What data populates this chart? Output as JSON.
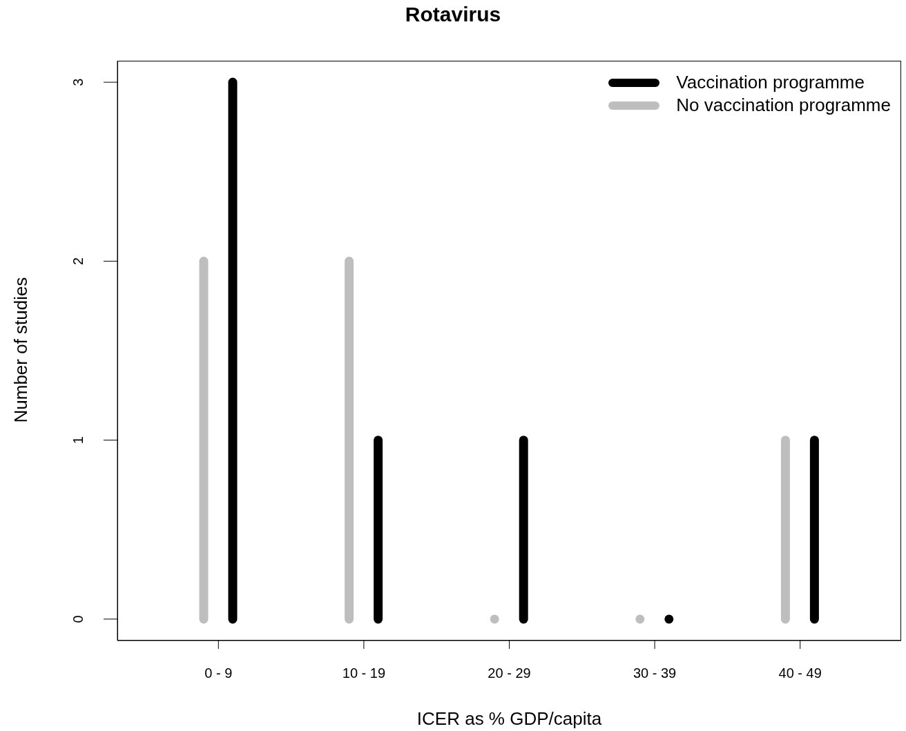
{
  "chart_data": {
    "type": "bar",
    "title": "Rotavirus",
    "xlabel": "ICER as % GDP/capita",
    "ylabel": "Number of studies",
    "categories": [
      "0 - 9",
      "10 - 19",
      "20 - 29",
      "30 - 39",
      "40 - 49"
    ],
    "series": [
      {
        "name": "Vaccination programme",
        "color": "#000000",
        "values": [
          3,
          1,
          1,
          0,
          1
        ]
      },
      {
        "name": "No vaccination programme",
        "color": "#bebebe",
        "values": [
          2,
          2,
          0,
          0,
          1
        ]
      }
    ],
    "ylim": [
      -0.12,
      3.12
    ],
    "yticks": [
      0,
      1,
      2,
      3
    ],
    "grid": false,
    "legend": "top right"
  }
}
